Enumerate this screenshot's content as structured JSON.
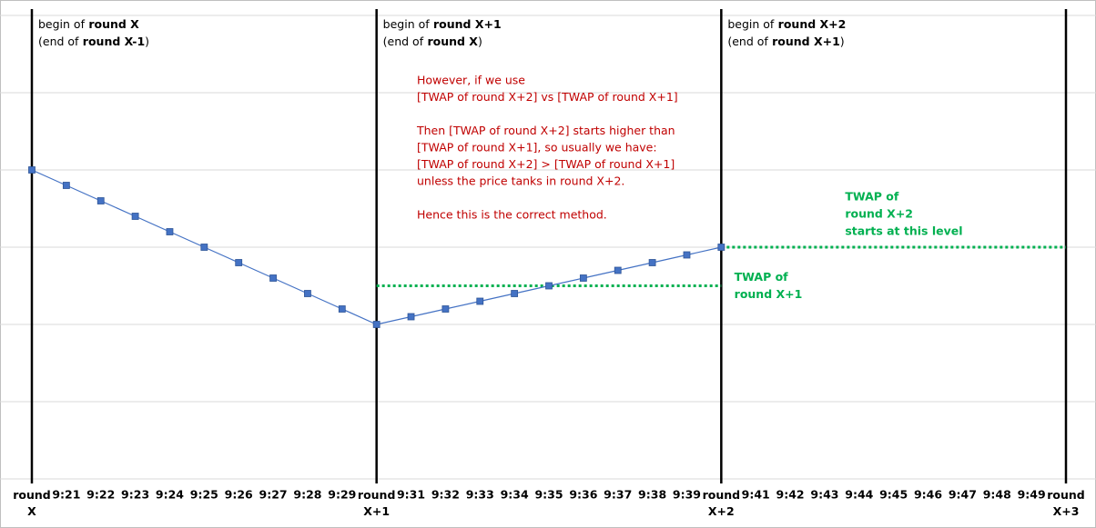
{
  "chart_data": {
    "type": "line",
    "categories": [
      "round X",
      "9:21",
      "9:22",
      "9:23",
      "9:24",
      "9:25",
      "9:26",
      "9:27",
      "9:28",
      "9:29",
      "round X+1",
      "9:31",
      "9:32",
      "9:33",
      "9:34",
      "9:35",
      "9:36",
      "9:37",
      "9:38",
      "9:39",
      "round X+2",
      "9:41",
      "9:42",
      "9:43",
      "9:44",
      "9:45",
      "9:46",
      "9:47",
      "9:48",
      "9:49",
      "round X+3"
    ],
    "series": [
      {
        "color": "#4472c4",
        "values": [
          4,
          3.8,
          3.6,
          3.4,
          3.2,
          3,
          2.8,
          2.6,
          2.4,
          2.2,
          2,
          2.1,
          2.2,
          2.3,
          2.4,
          2.5,
          2.6,
          2.7,
          2.8,
          2.9,
          3,
          null,
          null,
          null,
          null,
          null,
          null,
          null,
          null,
          null,
          null
        ]
      }
    ],
    "ylim": [
      0,
      6
    ],
    "yticks": [
      0,
      1,
      2,
      3,
      4,
      5,
      6
    ],
    "grid": true,
    "vertical_markers": [
      {
        "at": "round X",
        "begin": [
          "begin of",
          "round X"
        ],
        "end": [
          "(end of",
          "round X-1",
          ")"
        ]
      },
      {
        "at": "round X+1",
        "begin": [
          "begin of",
          "round X+1"
        ],
        "end": [
          "(end of",
          "round X",
          ")"
        ]
      },
      {
        "at": "round X+2",
        "begin": [
          "begin of",
          "round X+2"
        ],
        "end": [
          "(end of",
          "round X+1",
          ")"
        ]
      },
      {
        "at": "round X+3"
      }
    ],
    "reference_lines": [
      {
        "value": 2.5,
        "from": "round X+1",
        "to": "round X+2",
        "color": "#00b050",
        "label": [
          "TWAP of",
          "round X+1"
        ]
      },
      {
        "value": 3,
        "from": "round X+2",
        "to": "round X+3",
        "color": "#00b050",
        "label": [
          "TWAP of",
          "round X+2",
          "starts at this level"
        ]
      }
    ],
    "note": {
      "color": "#c00000",
      "paragraphs": [
        [
          "However, if we use",
          "[TWAP of round X+2] vs [TWAP of round X+1]"
        ],
        [
          "Then [TWAP of round X+2] starts higher than",
          "[TWAP of round X+1], so usually we have:",
          "[TWAP of round X+2] > [TWAP of round X+1]",
          "unless the price tanks in round X+2."
        ],
        [
          "Hence this is the correct method."
        ]
      ]
    }
  }
}
